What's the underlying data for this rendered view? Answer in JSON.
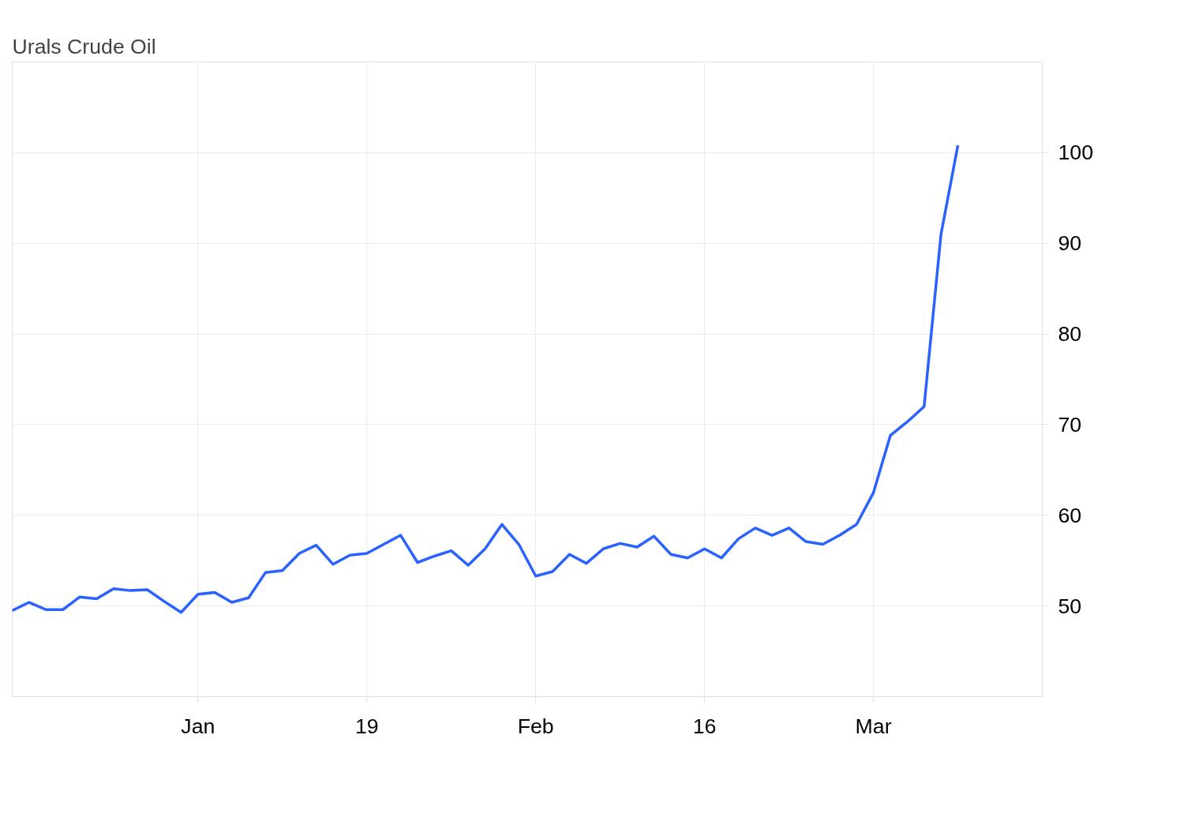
{
  "chart_data": {
    "type": "line",
    "title": "Urals Crude Oil",
    "categories": [
      null,
      null,
      null,
      null,
      null,
      null,
      null,
      null,
      null,
      null,
      null,
      "Jan",
      null,
      null,
      null,
      null,
      null,
      null,
      null,
      null,
      null,
      "19",
      null,
      null,
      null,
      null,
      null,
      null,
      null,
      null,
      null,
      "Feb",
      null,
      null,
      null,
      null,
      null,
      null,
      null,
      null,
      null,
      "16",
      null,
      null,
      null,
      null,
      null,
      null,
      null,
      null,
      null,
      "Mar",
      null,
      null,
      null,
      null,
      null,
      null,
      null,
      null,
      null,
      null
    ],
    "series": [
      {
        "color": "#2962ff",
        "values": [
          49.5,
          50.4,
          49.6,
          49.6,
          51.0,
          50.8,
          51.9,
          51.7,
          51.8,
          50.5,
          49.3,
          51.3,
          51.5,
          50.4,
          50.9,
          53.7,
          53.9,
          55.8,
          56.7,
          54.6,
          55.6,
          55.8,
          56.8,
          57.8,
          54.8,
          55.5,
          56.1,
          54.5,
          56.3,
          59.0,
          56.8,
          53.3,
          53.8,
          55.7,
          54.7,
          56.3,
          56.9,
          56.5,
          57.7,
          55.7,
          55.3,
          56.3,
          55.3,
          57.4,
          58.6,
          57.8,
          58.6,
          57.1,
          56.8,
          57.8,
          59.0,
          62.5,
          68.8,
          70.3,
          72.0,
          91.0,
          100.8,
          null,
          null,
          null,
          null,
          null
        ]
      }
    ],
    "ylim": [
      40,
      110
    ],
    "yticks": [
      50,
      60,
      70,
      80,
      90,
      100
    ],
    "grid": true
  }
}
